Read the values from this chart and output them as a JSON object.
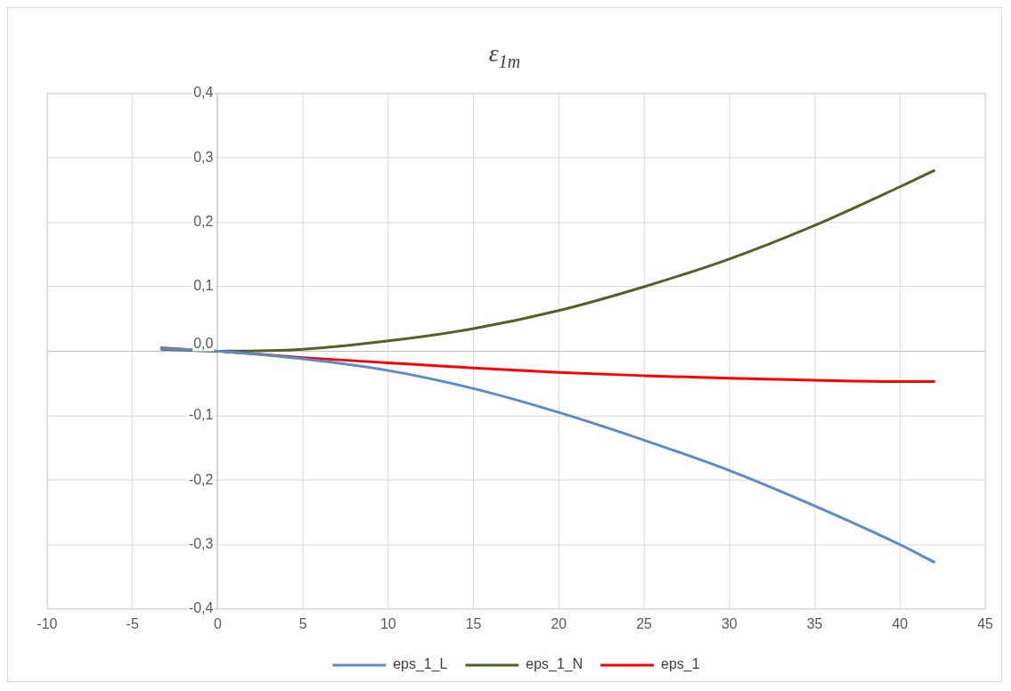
{
  "chart_data": {
    "type": "line",
    "title": "ε$_{1m}$",
    "xlim": [
      -10,
      45
    ],
    "xticks": [
      -10,
      -5,
      0,
      5,
      10,
      15,
      20,
      25,
      30,
      35,
      40,
      45
    ],
    "ylim": [
      -0.4,
      0.4
    ],
    "yticks": [
      {
        "value": -0.4,
        "label": "-0,4"
      },
      {
        "value": -0.3,
        "label": "-0,3"
      },
      {
        "value": -0.2,
        "label": "-0,2"
      },
      {
        "value": -0.1,
        "label": "-0,1"
      },
      {
        "value": 0,
        "label": "0,0"
      },
      {
        "value": 0.1,
        "label": "0,1"
      },
      {
        "value": 0.2,
        "label": "0,2"
      },
      {
        "value": 0.3,
        "label": "0,3"
      },
      {
        "value": 0.4,
        "label": "0,4"
      }
    ],
    "grid": true,
    "legend": "bottom",
    "marker": "none",
    "line_style": "solid",
    "series": [
      {
        "name": "eps_1_L",
        "color": "#5b8cc8",
        "x": [
          -3.3,
          0,
          5,
          10,
          15,
          20,
          25,
          30,
          35,
          40,
          42
        ],
        "values": [
          0.004,
          0,
          -0.012,
          -0.03,
          -0.058,
          -0.095,
          -0.138,
          -0.185,
          -0.24,
          -0.3,
          -0.327
        ]
      },
      {
        "name": "eps_1_N",
        "color": "#4f6228",
        "x": [
          -3.3,
          0,
          5,
          10,
          15,
          20,
          25,
          30,
          35,
          40,
          42
        ],
        "values": [
          0.003,
          0,
          0.003,
          0.016,
          0.035,
          0.063,
          0.1,
          0.143,
          0.195,
          0.255,
          0.28
        ]
      },
      {
        "name": "eps_1",
        "color": "#ff0000",
        "x": [
          -3.3,
          0,
          5,
          10,
          15,
          20,
          25,
          30,
          35,
          40,
          42
        ],
        "values": [
          0.005,
          0,
          -0.01,
          -0.018,
          -0.026,
          -0.033,
          -0.038,
          -0.042,
          -0.045,
          -0.047,
          -0.047
        ]
      }
    ]
  }
}
